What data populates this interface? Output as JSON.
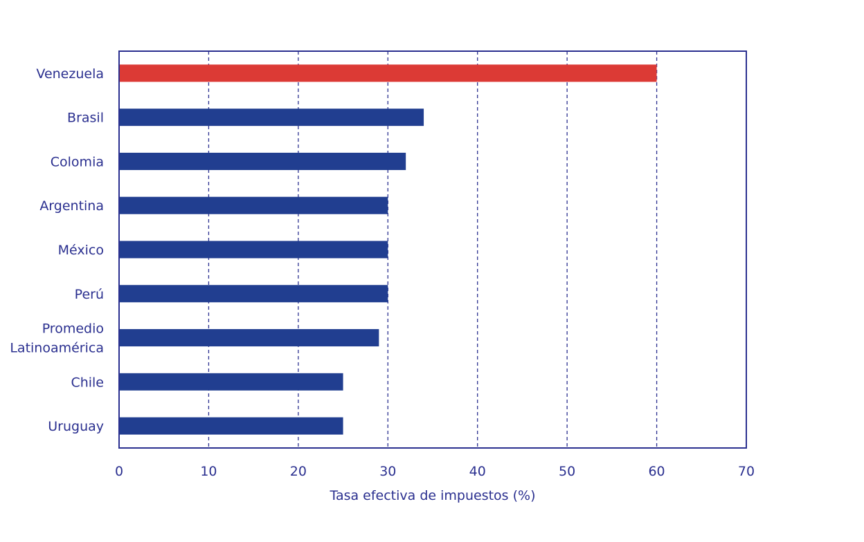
{
  "chart_data": {
    "type": "bar",
    "orientation": "horizontal",
    "title": "",
    "xlabel": "Tasa efectiva de impuestos (%)",
    "ylabel": "",
    "xlim": [
      0,
      70
    ],
    "xticks": [
      "0",
      "10",
      "20",
      "30",
      "40",
      "50",
      "60",
      "70"
    ],
    "grid": true,
    "categories": [
      [
        "Venezuela"
      ],
      [
        "Brasil"
      ],
      [
        "Colomia"
      ],
      [
        "Argentina"
      ],
      [
        "México"
      ],
      [
        "Perú"
      ],
      [
        "Promedio",
        "Latinoamérica"
      ],
      [
        "Chile"
      ],
      [
        "Uruguay"
      ]
    ],
    "values": [
      60,
      34,
      32,
      30,
      30,
      30,
      29,
      25,
      25
    ],
    "highlight_index": 0,
    "colors": {
      "bar": "#213e90",
      "highlight": "#dc3a35",
      "text": "#2a2f8f",
      "axis": "#2a2f8f",
      "grid": "#2a2f8f"
    }
  }
}
